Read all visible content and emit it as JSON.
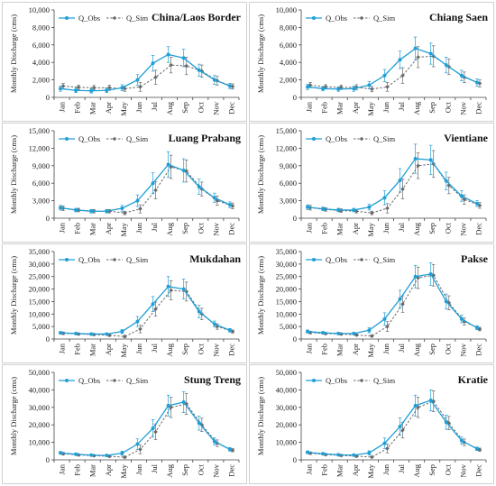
{
  "colors": {
    "obs": "#1f9fd6",
    "sim": "#6a6a6a",
    "axis": "#444444"
  },
  "chart_data": [
    {
      "type": "line",
      "title": "China/Laos Border",
      "ylabel": "Monthly Discharge (cms)",
      "categories": [
        "Jan",
        "Feb",
        "Mar",
        "Apr",
        "May",
        "Jun",
        "Jul",
        "Aug",
        "Sep",
        "Oct",
        "Nov",
        "Dec"
      ],
      "ylim": [
        0,
        10000
      ],
      "yticks": [
        "0",
        "2,000",
        "4,000",
        "6,000",
        "8,000",
        "10,000"
      ],
      "series": [
        {
          "name": "Q_Obs",
          "values": [
            1000,
            800,
            750,
            800,
            1100,
            2000,
            3900,
            4900,
            4500,
            3100,
            2000,
            1300
          ],
          "err": [
            300,
            250,
            250,
            250,
            350,
            600,
            900,
            900,
            1000,
            700,
            500,
            300
          ]
        },
        {
          "name": "Q_Sim",
          "values": [
            1300,
            1150,
            1100,
            1100,
            1000,
            1200,
            2300,
            3700,
            3600,
            3000,
            1900,
            1250
          ],
          "err": [
            300,
            250,
            250,
            300,
            300,
            500,
            800,
            900,
            1000,
            700,
            500,
            300
          ]
        }
      ]
    },
    {
      "type": "line",
      "title": "Chiang Saen",
      "ylabel": "Monthly Discharge (cms)",
      "categories": [
        "Jan",
        "Feb",
        "Mar",
        "Apr",
        "May",
        "Jun",
        "Jul",
        "Aug",
        "Sep",
        "Oct",
        "Nov",
        "Dec"
      ],
      "ylim": [
        0,
        10000
      ],
      "yticks": [
        "0",
        "2,000",
        "4,000",
        "6,000",
        "8,000",
        "10,000"
      ],
      "series": [
        {
          "name": "Q_Obs",
          "values": [
            1200,
            1000,
            950,
            1000,
            1400,
            2500,
            4300,
            5600,
            5000,
            3700,
            2500,
            1700
          ],
          "err": [
            300,
            250,
            250,
            300,
            400,
            700,
            1000,
            1300,
            1200,
            900,
            600,
            400
          ]
        },
        {
          "name": "Q_Sim",
          "values": [
            1400,
            1200,
            1150,
            1150,
            950,
            1200,
            2500,
            4600,
            4700,
            3500,
            2300,
            1600
          ],
          "err": [
            300,
            250,
            250,
            300,
            300,
            500,
            900,
            1200,
            1200,
            900,
            600,
            400
          ]
        }
      ]
    },
    {
      "type": "line",
      "title": "Luang Prabang",
      "ylabel": "Monthly Discharge (cms)",
      "categories": [
        "Jan",
        "Feb",
        "Mar",
        "Apr",
        "May",
        "Jun",
        "Jul",
        "Aug",
        "Sep",
        "Oct",
        "Nov",
        "Dec"
      ],
      "ylim": [
        0,
        15000
      ],
      "yticks": [
        "0",
        "3,000",
        "6,000",
        "9,000",
        "12,000",
        "15,000"
      ],
      "series": [
        {
          "name": "Q_Obs",
          "values": [
            1800,
            1400,
            1200,
            1200,
            1700,
            3000,
            6000,
            9200,
            8200,
            5400,
            3500,
            2300
          ],
          "err": [
            400,
            300,
            300,
            300,
            500,
            1000,
            1800,
            2200,
            2000,
            1300,
            800,
            500
          ]
        },
        {
          "name": "Q_Sim",
          "values": [
            1700,
            1400,
            1200,
            1200,
            900,
            1600,
            4800,
            8800,
            8100,
            5000,
            3000,
            2100
          ],
          "err": [
            400,
            300,
            300,
            300,
            300,
            700,
            1500,
            2000,
            1900,
            1200,
            800,
            500
          ]
        }
      ]
    },
    {
      "type": "line",
      "title": "Vientiane",
      "ylabel": "Monthly Discharge (cms)",
      "categories": [
        "Jan",
        "Feb",
        "Mar",
        "Apr",
        "May",
        "Jun",
        "Jul",
        "Aug",
        "Sep",
        "Oct",
        "Nov",
        "Dec"
      ],
      "ylim": [
        0,
        15000
      ],
      "yticks": [
        "0",
        "3,000",
        "6,000",
        "9,000",
        "12,000",
        "15,000"
      ],
      "series": [
        {
          "name": "Q_Obs",
          "values": [
            1900,
            1600,
            1400,
            1400,
            1900,
            3500,
            6500,
            10200,
            10000,
            6400,
            3800,
            2500
          ],
          "err": [
            400,
            300,
            300,
            300,
            500,
            1200,
            2000,
            2500,
            2500,
            1500,
            900,
            500
          ]
        },
        {
          "name": "Q_Sim",
          "values": [
            1800,
            1500,
            1300,
            1200,
            900,
            1700,
            5000,
            9000,
            9300,
            5600,
            3200,
            2200
          ],
          "err": [
            400,
            300,
            300,
            300,
            300,
            800,
            1700,
            2200,
            2300,
            1400,
            800,
            500
          ]
        }
      ]
    },
    {
      "type": "line",
      "title": "Mukdahan",
      "ylabel": "Monthly Discharge (cms)",
      "categories": [
        "Jan",
        "Feb",
        "Mar",
        "Apr",
        "May",
        "Jun",
        "Jul",
        "Aug",
        "Sep",
        "Oct",
        "Nov",
        "Dec"
      ],
      "ylim": [
        0,
        35000
      ],
      "yticks": [
        "0",
        "5,000",
        "10,000",
        "15,000",
        "20,000",
        "25,000",
        "30,000",
        "35,000"
      ],
      "series": [
        {
          "name": "Q_Obs",
          "values": [
            2500,
            2200,
            2000,
            2000,
            3000,
            7000,
            14000,
            21000,
            20000,
            11000,
            6000,
            3500
          ],
          "err": [
            500,
            400,
            400,
            400,
            800,
            2000,
            3000,
            4000,
            4000,
            2500,
            1200,
            700
          ]
        },
        {
          "name": "Q_Sim",
          "values": [
            2300,
            2000,
            1800,
            1500,
            1000,
            4000,
            12000,
            19500,
            19000,
            10000,
            5000,
            3000
          ],
          "err": [
            500,
            400,
            400,
            400,
            400,
            1500,
            2800,
            3800,
            3800,
            2300,
            1100,
            600
          ]
        }
      ]
    },
    {
      "type": "line",
      "title": "Pakse",
      "ylabel": "Monthly Discharge (cms)",
      "categories": [
        "Jan",
        "Feb",
        "Mar",
        "Apr",
        "May",
        "Jun",
        "Jul",
        "Aug",
        "Sep",
        "Oct",
        "Nov",
        "Dec"
      ],
      "ylim": [
        0,
        35000
      ],
      "yticks": [
        "0",
        "5,000",
        "10,000",
        "15,000",
        "20,000",
        "25,000",
        "30,000",
        "35,000"
      ],
      "series": [
        {
          "name": "Q_Obs",
          "values": [
            3000,
            2500,
            2200,
            2200,
            3500,
            8000,
            16000,
            25000,
            26000,
            15000,
            8000,
            4500
          ],
          "err": [
            600,
            500,
            400,
            400,
            1000,
            2500,
            3500,
            4500,
            4500,
            3000,
            1500,
            800
          ]
        },
        {
          "name": "Q_Sim",
          "values": [
            2600,
            2200,
            2000,
            1600,
            1200,
            5000,
            14000,
            24500,
            25500,
            14500,
            7000,
            4000
          ],
          "err": [
            500,
            400,
            400,
            400,
            400,
            2000,
            3300,
            4300,
            4300,
            2800,
            1400,
            700
          ]
        }
      ]
    },
    {
      "type": "line",
      "title": "Stung Treng",
      "ylabel": "Monthly Discharge (cms)",
      "categories": [
        "Jan",
        "Feb",
        "Mar",
        "Apr",
        "May",
        "Jun",
        "Jul",
        "Aug",
        "Sep",
        "Oct",
        "Nov",
        "Dec"
      ],
      "ylim": [
        0,
        50000
      ],
      "yticks": [
        "0",
        "10,000",
        "20,000",
        "30,000",
        "40,000",
        "50,000"
      ],
      "series": [
        {
          "name": "Q_Obs",
          "values": [
            4000,
            3200,
            2700,
            2500,
            3800,
            9000,
            18000,
            31000,
            33000,
            21000,
            10500,
            6000
          ],
          "err": [
            800,
            600,
            500,
            500,
            1200,
            3000,
            5000,
            6000,
            6000,
            4000,
            2000,
            1000
          ]
        },
        {
          "name": "Q_Sim",
          "values": [
            3500,
            2800,
            2400,
            2000,
            1500,
            6000,
            16000,
            30000,
            32000,
            20000,
            9500,
            5500
          ],
          "err": [
            700,
            500,
            500,
            500,
            500,
            2500,
            4500,
            5800,
            6000,
            3800,
            1900,
            900
          ]
        }
      ]
    },
    {
      "type": "line",
      "title": "Kratie",
      "ylabel": "Monthly Discharge (cms)",
      "categories": [
        "Jan",
        "Feb",
        "Mar",
        "Apr",
        "May",
        "Jun",
        "Jul",
        "Aug",
        "Sep",
        "Oct",
        "Nov",
        "Dec"
      ],
      "ylim": [
        0,
        50000
      ],
      "yticks": [
        "0",
        "10,000",
        "20,000",
        "30,000",
        "40,000",
        "50,000"
      ],
      "series": [
        {
          "name": "Q_Obs",
          "values": [
            4300,
            3500,
            2900,
            2700,
            4000,
            9500,
            19000,
            31000,
            34000,
            21500,
            11000,
            6300
          ],
          "err": [
            800,
            600,
            500,
            500,
            1200,
            3000,
            5000,
            6000,
            6000,
            4000,
            2000,
            1000
          ]
        },
        {
          "name": "Q_Sim",
          "values": [
            3800,
            3000,
            2500,
            2100,
            1600,
            6500,
            17000,
            30000,
            33500,
            21000,
            10000,
            5800
          ],
          "err": [
            700,
            500,
            500,
            500,
            500,
            2500,
            4500,
            5800,
            6000,
            3800,
            1900,
            900
          ]
        }
      ]
    }
  ]
}
